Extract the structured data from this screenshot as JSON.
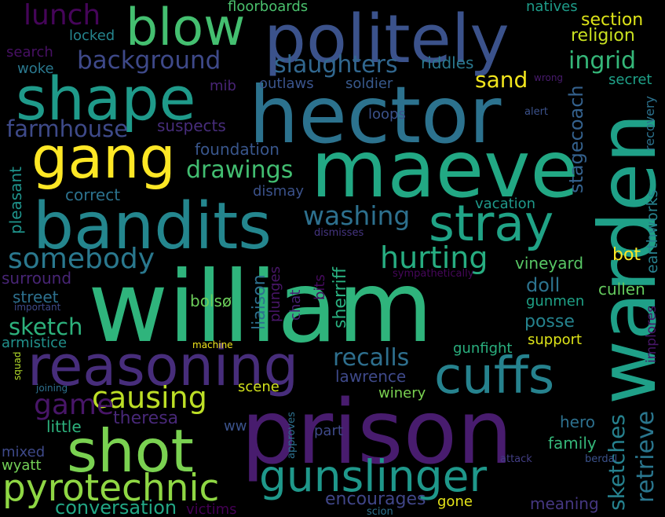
{
  "background_color": "#000000",
  "words": [
    {
      "text": "william",
      "color": "#2fb47c"
    },
    {
      "text": "prison",
      "color": "#481c6e"
    },
    {
      "text": "warden",
      "color": "#1fa088"
    },
    {
      "text": "hector",
      "color": "#2c728e"
    },
    {
      "text": "maeve",
      "color": "#22a884"
    },
    {
      "text": "politely",
      "color": "#3b528b"
    },
    {
      "text": "bandits",
      "color": "#24868e"
    },
    {
      "text": "shape",
      "color": "#1f9a8a"
    },
    {
      "text": "shot",
      "color": "#7ad151"
    },
    {
      "text": "reasoning",
      "color": "#472d7b"
    },
    {
      "text": "gang",
      "color": "#fde725"
    },
    {
      "text": "blow",
      "color": "#44bf70"
    },
    {
      "text": "cuffs",
      "color": "#26828e"
    },
    {
      "text": "stray",
      "color": "#20a386"
    },
    {
      "text": "gunslinger",
      "color": "#1f988b"
    },
    {
      "text": "pyrotechnic",
      "color": "#8fd744"
    },
    {
      "text": "causing",
      "color": "#bddf26"
    },
    {
      "text": "somebody",
      "color": "#2a788e"
    },
    {
      "text": "game",
      "color": "#481668"
    },
    {
      "text": "hurting",
      "color": "#27ad81"
    },
    {
      "text": "washing",
      "color": "#2d708e"
    },
    {
      "text": "lunch",
      "color": "#450559"
    },
    {
      "text": "background",
      "color": "#3e4989"
    },
    {
      "text": "slaughters",
      "color": "#31678e"
    },
    {
      "text": "drawings",
      "color": "#42be71"
    },
    {
      "text": "ingrid",
      "color": "#35b779"
    },
    {
      "text": "sand",
      "color": "#f1e51d"
    },
    {
      "text": "farmhouse",
      "color": "#3e4a89"
    },
    {
      "text": "sketch",
      "color": "#2db27d"
    },
    {
      "text": "recalls",
      "color": "#2e6f8e"
    },
    {
      "text": "retrieve",
      "color": "#2a768e"
    },
    {
      "text": "sketches",
      "color": "#26818e"
    },
    {
      "text": "stagecoach",
      "color": "#34618d"
    },
    {
      "text": "conversation",
      "color": "#22a785"
    },
    {
      "text": "encourages",
      "color": "#404688"
    },
    {
      "text": "section",
      "color": "#dde318"
    },
    {
      "text": "religion",
      "color": "#c8e020"
    },
    {
      "text": "natives",
      "color": "#1e9c89"
    },
    {
      "text": "floorboards",
      "color": "#4ac16d"
    },
    {
      "text": "locked",
      "color": "#25858e"
    },
    {
      "text": "search",
      "color": "#471063"
    },
    {
      "text": "woke",
      "color": "#2a788e"
    },
    {
      "text": "riddles",
      "color": "#2a788e"
    },
    {
      "text": "outlaws",
      "color": "#3a548c"
    },
    {
      "text": "soldier",
      "color": "#38598c"
    },
    {
      "text": "mib",
      "color": "#482475"
    },
    {
      "text": "secret",
      "color": "#1fa188"
    },
    {
      "text": "recovery",
      "color": "#2c728e"
    },
    {
      "text": "loops",
      "color": "#3b528b"
    },
    {
      "text": "suspects",
      "color": "#472d7b"
    },
    {
      "text": "alert",
      "color": "#3b528b"
    },
    {
      "text": "wrong",
      "color": "#481b6d"
    },
    {
      "text": "foundation",
      "color": "#39568c"
    },
    {
      "text": "pleasant",
      "color": "#1f948c"
    },
    {
      "text": "correct",
      "color": "#2c728e"
    },
    {
      "text": "dismay",
      "color": "#3b528b"
    },
    {
      "text": "earthworks",
      "color": "#27808e"
    },
    {
      "text": "vacation",
      "color": "#1f998a"
    },
    {
      "text": "dismisses",
      "color": "#453581"
    },
    {
      "text": "vineyard",
      "color": "#58c765"
    },
    {
      "text": "bot",
      "color": "#fde725"
    },
    {
      "text": "surround",
      "color": "#482576"
    },
    {
      "text": "liaison",
      "color": "#2d708e"
    },
    {
      "text": "plunges",
      "color": "#481668"
    },
    {
      "text": "sherriff",
      "color": "#29af7f"
    },
    {
      "text": "bits",
      "color": "#460b5e"
    },
    {
      "text": "sympathetically",
      "color": "#46075a"
    },
    {
      "text": "doll",
      "color": "#2c738e"
    },
    {
      "text": "cullen",
      "color": "#65cb5e"
    },
    {
      "text": "street",
      "color": "#2d708e"
    },
    {
      "text": "important",
      "color": "#3e4989"
    },
    {
      "text": "chat",
      "color": "#482173"
    },
    {
      "text": "bolsø",
      "color": "#6ccd5a"
    },
    {
      "text": "gunmen",
      "color": "#1fa287"
    },
    {
      "text": "implores",
      "color": "#481769"
    },
    {
      "text": "posse",
      "color": "#25838e"
    },
    {
      "text": "armistice",
      "color": "#21918c"
    },
    {
      "text": "support",
      "color": "#dde318"
    },
    {
      "text": "gunfight",
      "color": "#2ab07f"
    },
    {
      "text": "machine",
      "color": "#f1e51d"
    },
    {
      "text": "squad",
      "color": "#b5de2b"
    },
    {
      "text": "lawrence",
      "color": "#3e4989"
    },
    {
      "text": "scene",
      "color": "#d2e21b"
    },
    {
      "text": "joining",
      "color": "#2d708e"
    },
    {
      "text": "winery",
      "color": "#7ad151"
    },
    {
      "text": "theresa",
      "color": "#482878"
    },
    {
      "text": "hero",
      "color": "#2d708e"
    },
    {
      "text": "little",
      "color": "#2db27d"
    },
    {
      "text": "ww",
      "color": "#3b528b"
    },
    {
      "text": "approves",
      "color": "#2d708e"
    },
    {
      "text": "part",
      "color": "#3e4989"
    },
    {
      "text": "family",
      "color": "#35b779"
    },
    {
      "text": "mixed",
      "color": "#3e4989"
    },
    {
      "text": "wyatt",
      "color": "#73d056"
    },
    {
      "text": "attack",
      "color": "#433e85"
    },
    {
      "text": "berdal",
      "color": "#3b528b"
    },
    {
      "text": "victims",
      "color": "#440154"
    },
    {
      "text": "scion",
      "color": "#2d708e"
    },
    {
      "text": "gone",
      "color": "#e5e419"
    },
    {
      "text": "meaning",
      "color": "#453781"
    }
  ]
}
